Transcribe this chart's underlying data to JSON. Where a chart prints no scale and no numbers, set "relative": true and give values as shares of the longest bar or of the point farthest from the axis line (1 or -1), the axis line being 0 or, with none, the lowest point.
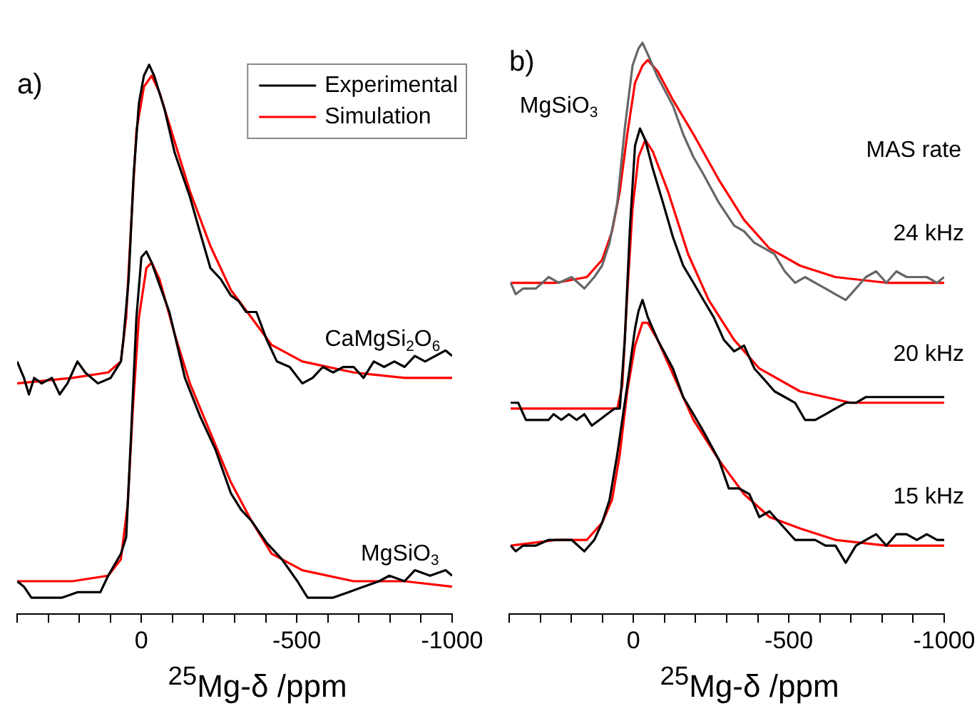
{
  "chart_data": [
    {
      "type": "line",
      "title": "a)",
      "xlabel": "$^{25}$Mg-δ /ppm",
      "relative": true,
      "xlim": [
        400,
        -1000
      ],
      "xticks": [
        {
          "value": 400,
          "label": null
        },
        {
          "value": 300,
          "label": null
        },
        {
          "value": 200,
          "label": null
        },
        {
          "value": 100,
          "label": null
        },
        0,
        {
          "value": -100,
          "label": null
        },
        {
          "value": -200,
          "label": null
        },
        {
          "value": -300,
          "label": null
        },
        {
          "value": -400,
          "label": null
        },
        -500,
        {
          "value": -600,
          "label": null
        },
        {
          "value": -700,
          "label": null
        },
        {
          "value": -800,
          "label": null
        },
        {
          "value": -900,
          "label": null
        },
        -1000
      ],
      "legend": "top right",
      "marker": "none",
      "line_style": "solid",
      "series": [
        {
          "name": "Experimental",
          "color": "#000000",
          "x": [
            400,
            378,
            362,
            345,
            321,
            288,
            263,
            238,
            206,
            181,
            140,
            99,
            66,
            58,
            41,
            25,
            8,
            -8,
            -25,
            -41,
            -74,
            -107,
            -156,
            -181,
            -222,
            -255,
            -288,
            -313,
            -337,
            -370,
            -403,
            -436,
            -477,
            -518,
            -551,
            -584,
            -617,
            -650,
            -683,
            -715,
            -748,
            -781,
            -814,
            -847,
            -880,
            -913,
            -946,
            -979,
            -1000
          ],
          "values": [
            0.46,
            0.43,
            0.4,
            0.43,
            0.42,
            0.43,
            0.4,
            0.42,
            0.46,
            0.44,
            0.42,
            0.43,
            0.46,
            0.5,
            0.61,
            0.8,
            0.93,
            0.98,
            1.0,
            0.98,
            0.92,
            0.84,
            0.76,
            0.71,
            0.63,
            0.61,
            0.58,
            0.57,
            0.55,
            0.55,
            0.5,
            0.46,
            0.45,
            0.42,
            0.43,
            0.45,
            0.44,
            0.45,
            0.45,
            0.43,
            0.46,
            0.45,
            0.46,
            0.45,
            0.47,
            0.46,
            0.47,
            0.48,
            0.47
          ]
        },
        {
          "name": "Simulation",
          "color": "#ff0000",
          "x": [
            400,
            222,
            107,
            66,
            49,
            33,
            16,
            -8,
            -33,
            -58,
            -107,
            -156,
            -222,
            -288,
            -354,
            -419,
            -518,
            -683,
            -847,
            -1000
          ],
          "values": [
            0.42,
            0.43,
            0.44,
            0.46,
            0.54,
            0.71,
            0.88,
            0.96,
            0.98,
            0.95,
            0.86,
            0.77,
            0.67,
            0.59,
            0.54,
            0.49,
            0.46,
            0.44,
            0.43,
            0.43
          ]
        },
        {
          "color": "#000000",
          "x": [
            400,
            378,
            354,
            321,
            288,
            255,
            206,
            156,
            132,
            107,
            66,
            49,
            33,
            16,
            0,
            -16,
            -33,
            -58,
            -90,
            -140,
            -189,
            -238,
            -288,
            -321,
            -354,
            -403,
            -452,
            -502,
            -535,
            -567,
            -617,
            -666,
            -715,
            -765,
            -798,
            -847,
            -880,
            -929,
            -979,
            -1000
          ],
          "values": [
            0.06,
            0.05,
            0.03,
            0.03,
            0.03,
            0.03,
            0.04,
            0.04,
            0.04,
            0.07,
            0.11,
            0.14,
            0.33,
            0.54,
            0.65,
            0.66,
            0.64,
            0.6,
            0.55,
            0.43,
            0.36,
            0.3,
            0.22,
            0.19,
            0.17,
            0.13,
            0.1,
            0.06,
            0.03,
            0.03,
            0.03,
            0.04,
            0.05,
            0.06,
            0.07,
            0.06,
            0.08,
            0.07,
            0.08,
            0.07
          ]
        },
        {
          "color": "#ff0000",
          "x": [
            400,
            222,
            107,
            66,
            44,
            28,
            8,
            -16,
            -33,
            -58,
            -107,
            -156,
            -222,
            -288,
            -354,
            -419,
            -518,
            -683,
            -847,
            -1000
          ],
          "values": [
            0.06,
            0.06,
            0.07,
            0.1,
            0.2,
            0.37,
            0.54,
            0.63,
            0.64,
            0.61,
            0.51,
            0.42,
            0.33,
            0.24,
            0.17,
            0.11,
            0.08,
            0.06,
            0.06,
            0.05
          ]
        }
      ],
      "annotations": [
        "CaMgSi$_{2}$O$_{6}$",
        "MgSiO$_{3}$"
      ]
    },
    {
      "type": "line",
      "title": "b)",
      "xlabel": "$^{25}$Mg-δ /ppm",
      "relative": true,
      "xlim": [
        400,
        -1000
      ],
      "xticks": [
        {
          "value": 400,
          "label": null
        },
        {
          "value": 300,
          "label": null
        },
        {
          "value": 200,
          "label": null
        },
        {
          "value": 100,
          "label": null
        },
        0,
        {
          "value": -100,
          "label": null
        },
        {
          "value": -200,
          "label": null
        },
        {
          "value": -300,
          "label": null
        },
        {
          "value": -400,
          "label": null
        },
        -500,
        {
          "value": -600,
          "label": null
        },
        {
          "value": -700,
          "label": null
        },
        {
          "value": -800,
          "label": null
        },
        {
          "value": -900,
          "label": null
        },
        -1000
      ],
      "marker": "none",
      "line_style": "solid",
      "series": [
        {
          "name": "24 kHz",
          "color": "#666666",
          "x": [
            395,
            379,
            355,
            314,
            273,
            240,
            199,
            158,
            126,
            101,
            77,
            52,
            28,
            3,
            -16,
            -29,
            -46,
            -78,
            -127,
            -160,
            -193,
            -225,
            -275,
            -324,
            -356,
            -389,
            -422,
            -454,
            -487,
            -520,
            -552,
            -585,
            -618,
            -650,
            -683,
            -716,
            -748,
            -781,
            -814,
            -846,
            -879,
            -912,
            -944,
            -977,
            -1000
          ],
          "values": [
            0.58,
            0.56,
            0.57,
            0.57,
            0.59,
            0.58,
            0.59,
            0.57,
            0.59,
            0.61,
            0.65,
            0.72,
            0.85,
            0.96,
            0.99,
            1.0,
            0.98,
            0.94,
            0.89,
            0.84,
            0.8,
            0.77,
            0.72,
            0.68,
            0.67,
            0.65,
            0.64,
            0.63,
            0.6,
            0.58,
            0.59,
            0.58,
            0.57,
            0.56,
            0.55,
            0.57,
            0.59,
            0.6,
            0.58,
            0.6,
            0.59,
            0.59,
            0.59,
            0.58,
            0.59
          ]
        },
        {
          "color": "#ff0000",
          "x": [
            395,
            248,
            150,
            101,
            69,
            44,
            20,
            -5,
            -29,
            -46,
            -78,
            -127,
            -193,
            -275,
            -356,
            -438,
            -536,
            -650,
            -814,
            -1000
          ],
          "values": [
            0.58,
            0.58,
            0.59,
            0.62,
            0.67,
            0.74,
            0.84,
            0.93,
            0.96,
            0.97,
            0.95,
            0.9,
            0.84,
            0.76,
            0.69,
            0.64,
            0.61,
            0.59,
            0.58,
            0.58
          ]
        },
        {
          "name": "20 kHz",
          "color": "#000000",
          "x": [
            395,
            371,
            346,
            297,
            273,
            257,
            232,
            208,
            183,
            158,
            134,
            109,
            85,
            60,
            44,
            28,
            11,
            -5,
            -21,
            -38,
            -62,
            -95,
            -127,
            -160,
            -193,
            -225,
            -258,
            -291,
            -324,
            -356,
            -389,
            -422,
            -454,
            -487,
            -520,
            -552,
            -585,
            -618,
            -650,
            -683,
            -716,
            -748,
            -781,
            -814,
            -846,
            -879,
            -912,
            -944,
            -977,
            -1000
          ],
          "values": [
            0.37,
            0.37,
            0.34,
            0.34,
            0.34,
            0.35,
            0.34,
            0.35,
            0.34,
            0.35,
            0.33,
            0.34,
            0.35,
            0.36,
            0.36,
            0.48,
            0.68,
            0.82,
            0.85,
            0.83,
            0.78,
            0.72,
            0.66,
            0.61,
            0.58,
            0.55,
            0.52,
            0.48,
            0.46,
            0.47,
            0.43,
            0.41,
            0.39,
            0.38,
            0.37,
            0.34,
            0.34,
            0.35,
            0.36,
            0.37,
            0.37,
            0.38,
            0.38,
            0.38,
            0.38,
            0.38,
            0.38,
            0.38,
            0.38,
            0.38
          ]
        },
        {
          "color": "#ff0000",
          "x": [
            395,
            52,
            36,
            20,
            3,
            -16,
            -38,
            -62,
            -111,
            -176,
            -242,
            -324,
            -405,
            -536,
            -699,
            -1000
          ],
          "values": [
            0.36,
            0.36,
            0.4,
            0.56,
            0.71,
            0.8,
            0.83,
            0.81,
            0.74,
            0.63,
            0.55,
            0.48,
            0.43,
            0.39,
            0.37,
            0.37
          ]
        },
        {
          "name": "15 kHz",
          "color": "#000000",
          "x": [
            395,
            379,
            355,
            314,
            273,
            240,
            199,
            158,
            126,
            101,
            77,
            52,
            20,
            -5,
            -16,
            -29,
            -46,
            -78,
            -127,
            -160,
            -193,
            -225,
            -275,
            -307,
            -340,
            -373,
            -405,
            -438,
            -454,
            -487,
            -520,
            -552,
            -585,
            -618,
            -650,
            -683,
            -716,
            -748,
            -781,
            -814,
            -846,
            -879,
            -912,
            -944,
            -977,
            -1000
          ],
          "values": [
            0.12,
            0.11,
            0.12,
            0.12,
            0.13,
            0.13,
            0.13,
            0.11,
            0.13,
            0.16,
            0.2,
            0.28,
            0.4,
            0.5,
            0.53,
            0.55,
            0.52,
            0.48,
            0.43,
            0.38,
            0.35,
            0.32,
            0.27,
            0.22,
            0.22,
            0.21,
            0.17,
            0.18,
            0.17,
            0.15,
            0.13,
            0.13,
            0.13,
            0.12,
            0.12,
            0.09,
            0.12,
            0.13,
            0.14,
            0.12,
            0.14,
            0.14,
            0.13,
            0.14,
            0.13,
            0.13
          ]
        },
        {
          "color": "#ff0000",
          "x": [
            395,
            248,
            150,
            101,
            69,
            44,
            20,
            -5,
            -29,
            -46,
            -78,
            -127,
            -193,
            -275,
            -356,
            -438,
            -536,
            -650,
            -814,
            -1000
          ],
          "values": [
            0.12,
            0.13,
            0.13,
            0.16,
            0.2,
            0.28,
            0.39,
            0.47,
            0.51,
            0.51,
            0.48,
            0.42,
            0.34,
            0.27,
            0.21,
            0.17,
            0.15,
            0.13,
            0.12,
            0.12
          ]
        }
      ],
      "annotations": [
        "MgSiO$_{3}$",
        "MAS rate"
      ]
    }
  ]
}
